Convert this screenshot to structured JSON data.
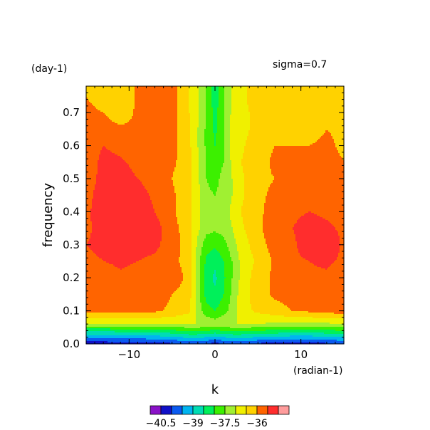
{
  "chart_data": {
    "type": "heatmap",
    "title": "",
    "annotation": "sigma=0.7",
    "xlabel": "k",
    "ylabel": "frequency",
    "x_unit": "(radian-1)",
    "y_unit": "(day-1)",
    "xlim": [
      -15,
      15
    ],
    "ylim": [
      0,
      0.78
    ],
    "x_ticks": [
      -10,
      0,
      10
    ],
    "y_ticks": [
      0.0,
      0.1,
      0.2,
      0.3,
      0.4,
      0.5,
      0.6,
      0.7
    ],
    "x_tick_labels": [
      "−10",
      "0",
      "10"
    ],
    "y_tick_labels": [
      "0.0",
      "0.1",
      "0.2",
      "0.3",
      "0.4",
      "0.5",
      "0.6",
      "0.7"
    ],
    "colorbar": {
      "levels": [
        -41,
        -40.5,
        -40,
        -39.5,
        -39,
        -38.5,
        -38,
        -37.5,
        -37,
        -36.5,
        -36,
        -35.5,
        -35
      ],
      "labels": [
        "−40.5",
        "−39",
        "−37.5",
        "−36"
      ],
      "label_values": [
        -40.5,
        -39,
        -37.5,
        -36
      ],
      "colors": [
        "#8a12c8",
        "#1010c8",
        "#0a5af0",
        "#00b4f0",
        "#00dcb4",
        "#00f05a",
        "#3cf000",
        "#a0f032",
        "#f0f000",
        "#ffd200",
        "#ff6400",
        "#ff2d2d",
        "#ff9c9c"
      ]
    },
    "field": {
      "k": [
        -15,
        -13,
        -11,
        -9,
        -7,
        -5,
        -3,
        -2,
        -1,
        0,
        1,
        2,
        3,
        5,
        7,
        9,
        11,
        13,
        15
      ],
      "frequency": [
        0.0,
        0.02,
        0.04,
        0.06,
        0.1,
        0.15,
        0.2,
        0.25,
        0.3,
        0.35,
        0.4,
        0.45,
        0.5,
        0.55,
        0.6,
        0.65,
        0.7,
        0.75,
        0.78
      ],
      "values": [
        [
          -40.3,
          -40.3,
          -40.3,
          -40.3,
          -40.2,
          -40.1,
          -39.9,
          -39.9,
          -40.0,
          -40.2,
          -40.0,
          -39.9,
          -39.9,
          -40.1,
          -40.2,
          -40.2,
          -40.2,
          -40.1,
          -40.0
        ],
        [
          -39.4,
          -39.4,
          -39.3,
          -39.3,
          -39.2,
          -39.1,
          -38.9,
          -38.9,
          -39.0,
          -39.2,
          -39.0,
          -38.9,
          -38.9,
          -39.0,
          -39.1,
          -39.2,
          -39.2,
          -39.1,
          -39.0
        ],
        [
          -38.4,
          -38.4,
          -38.3,
          -38.3,
          -38.3,
          -38.1,
          -37.9,
          -37.9,
          -38.0,
          -38.1,
          -38.0,
          -37.9,
          -37.9,
          -38.0,
          -38.1,
          -38.2,
          -38.2,
          -38.1,
          -38.0
        ],
        [
          -37.0,
          -37.0,
          -37.0,
          -37.0,
          -37.0,
          -37.0,
          -37.0,
          -37.0,
          -37.1,
          -37.2,
          -37.1,
          -37.0,
          -37.0,
          -37.0,
          -37.1,
          -37.1,
          -37.1,
          -37.1,
          -37.0
        ],
        [
          -35.8,
          -35.8,
          -35.8,
          -35.8,
          -35.9,
          -36.1,
          -36.4,
          -37.2,
          -37.8,
          -38.0,
          -37.7,
          -37.3,
          -36.7,
          -36.4,
          -36.2,
          -36.0,
          -35.9,
          -35.8,
          -35.7
        ],
        [
          -35.7,
          -35.8,
          -35.7,
          -35.8,
          -35.8,
          -36.0,
          -36.3,
          -37.3,
          -38.2,
          -38.4,
          -38.0,
          -37.4,
          -36.8,
          -36.2,
          -35.9,
          -35.8,
          -35.8,
          -35.7,
          -35.6
        ],
        [
          -35.6,
          -35.8,
          -35.6,
          -35.7,
          -35.8,
          -35.6,
          -36.2,
          -37.3,
          -38.3,
          -38.6,
          -38.1,
          -37.5,
          -36.9,
          -36.2,
          -35.9,
          -35.7,
          -35.6,
          -35.6,
          -35.8
        ],
        [
          -35.6,
          -35.5,
          -35.4,
          -35.5,
          -35.6,
          -35.8,
          -36.3,
          -37.3,
          -38.1,
          -38.4,
          -38.0,
          -37.5,
          -36.9,
          -36.4,
          -35.9,
          -35.6,
          -35.5,
          -35.4,
          -35.6
        ],
        [
          -35.5,
          -35.4,
          -35.2,
          -35.3,
          -35.4,
          -35.7,
          -36.3,
          -37.1,
          -37.8,
          -37.9,
          -37.7,
          -37.2,
          -36.8,
          -36.2,
          -35.8,
          -35.6,
          -35.2,
          -35.1,
          -35.6
        ],
        [
          -35.6,
          -35.3,
          -35.2,
          -35.2,
          -35.3,
          -35.8,
          -36.3,
          -36.9,
          -37.3,
          -37.4,
          -37.3,
          -37.0,
          -36.6,
          -36.1,
          -35.7,
          -35.5,
          -35.3,
          -35.4,
          -35.6
        ],
        [
          -35.6,
          -35.2,
          -35.1,
          -35.2,
          -35.5,
          -35.9,
          -36.4,
          -36.9,
          -37.3,
          -37.4,
          -37.2,
          -36.9,
          -36.5,
          -36.1,
          -35.8,
          -35.6,
          -35.5,
          -35.6,
          -35.7
        ],
        [
          -35.7,
          -35.2,
          -35.1,
          -35.3,
          -35.6,
          -35.9,
          -36.4,
          -36.9,
          -37.4,
          -37.5,
          -37.3,
          -37.0,
          -36.6,
          -36.1,
          -35.9,
          -35.8,
          -35.8,
          -35.9,
          -35.9
        ],
        [
          -35.8,
          -35.3,
          -35.2,
          -35.5,
          -35.7,
          -36.0,
          -36.4,
          -36.9,
          -37.5,
          -37.7,
          -37.3,
          -37.0,
          -36.6,
          -36.1,
          -36.0,
          -35.8,
          -35.9,
          -35.9,
          -36.0
        ],
        [
          -35.9,
          -35.3,
          -35.4,
          -35.7,
          -35.9,
          -35.9,
          -36.3,
          -36.9,
          -37.5,
          -37.9,
          -37.5,
          -36.9,
          -36.5,
          -36.2,
          -35.9,
          -35.9,
          -35.8,
          -35.8,
          -36.0
        ],
        [
          -35.9,
          -35.5,
          -35.7,
          -35.9,
          -35.8,
          -35.8,
          -36.4,
          -37.0,
          -37.6,
          -38.0,
          -37.6,
          -36.8,
          -36.6,
          -36.2,
          -36.0,
          -36.0,
          -36.0,
          -35.9,
          -36.1
        ],
        [
          -35.9,
          -35.8,
          -35.9,
          -35.9,
          -35.9,
          -35.8,
          -36.4,
          -37.0,
          -37.6,
          -38.1,
          -37.6,
          -36.8,
          -36.7,
          -36.3,
          -36.1,
          -36.1,
          -36.2,
          -36.0,
          -36.1
        ],
        [
          -35.9,
          -36.0,
          -36.3,
          -35.9,
          -35.9,
          -35.8,
          -36.5,
          -36.9,
          -37.5,
          -38.2,
          -37.5,
          -36.9,
          -36.6,
          -36.4,
          -36.1,
          -36.2,
          -36.4,
          -36.3,
          -36.2
        ],
        [
          -36.0,
          -36.2,
          -36.5,
          -35.9,
          -35.9,
          -35.8,
          -36.5,
          -36.9,
          -37.6,
          -38.3,
          -37.6,
          -36.9,
          -36.6,
          -36.3,
          -36.2,
          -36.2,
          -36.5,
          -36.5,
          -36.3
        ],
        [
          -36.0,
          -36.2,
          -36.5,
          -35.9,
          -35.9,
          -35.8,
          -36.5,
          -36.9,
          -37.6,
          -38.3,
          -37.6,
          -36.9,
          -36.6,
          -36.3,
          -36.2,
          -36.2,
          -36.5,
          -36.5,
          -36.3
        ]
      ]
    }
  }
}
